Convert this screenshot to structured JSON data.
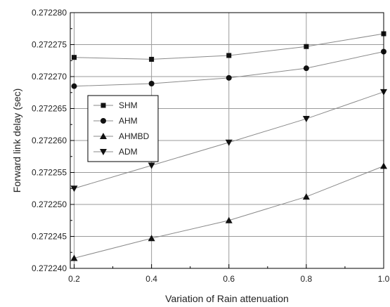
{
  "chart_data": {
    "type": "line",
    "title": "",
    "xlabel": "Variation of Rain attenuation",
    "ylabel": "Forward link delay (sec)",
    "x": [
      0.2,
      0.4,
      0.6,
      0.8,
      1.0
    ],
    "x_ticks": [
      "0.2",
      "0.4",
      "0.6",
      "0.8",
      "1.0"
    ],
    "xlim": [
      0.19,
      1.0
    ],
    "y_ticks": [
      "0.272240",
      "0.272245",
      "0.272250",
      "0.272255",
      "0.272260",
      "0.272265",
      "0.272270",
      "0.272275",
      "0.272280"
    ],
    "ylim": [
      0.27224,
      0.27228
    ],
    "grid": true,
    "legend_position": "center-left",
    "series": [
      {
        "name": "SHM",
        "marker": "square",
        "values": [
          0.272273,
          0.2722727,
          0.2722733,
          0.2722747,
          0.2722767
        ]
      },
      {
        "name": "AHM",
        "marker": "circle",
        "values": [
          0.2722685,
          0.2722689,
          0.2722698,
          0.2722713,
          0.2722739
        ]
      },
      {
        "name": "AHMBD",
        "marker": "triangle-up",
        "values": [
          0.2722416,
          0.2722447,
          0.2722475,
          0.2722512,
          0.272256
        ]
      },
      {
        "name": "ADM",
        "marker": "triangle-down",
        "values": [
          0.2722525,
          0.2722561,
          0.2722597,
          0.2722634,
          0.2722676
        ]
      }
    ],
    "colors": {
      "line": "#8a8a8a",
      "marker": "#111111",
      "grid": "#9a9a9a"
    }
  }
}
